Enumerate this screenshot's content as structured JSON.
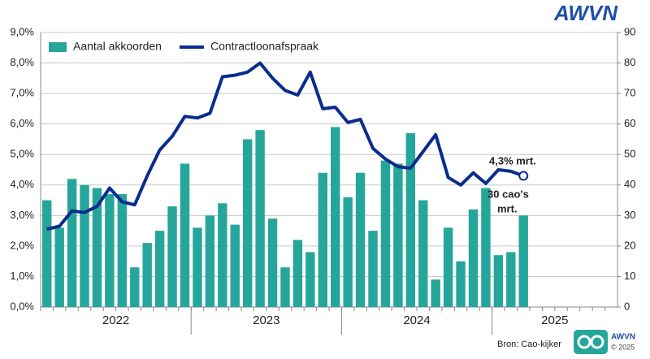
{
  "chart_data": {
    "type": "combo",
    "categories": [
      "2022",
      null,
      null,
      null,
      null,
      null,
      null,
      null,
      null,
      null,
      null,
      null,
      "2023",
      null,
      null,
      null,
      null,
      null,
      null,
      null,
      null,
      null,
      null,
      null,
      "2024",
      null,
      null,
      null,
      null,
      null,
      null,
      null,
      null,
      null,
      null,
      null,
      "2025",
      null,
      null,
      null,
      null,
      null,
      null,
      null,
      null,
      null
    ],
    "series": [
      {
        "name": "Aantal akkoorden",
        "type": "bar",
        "axis": "y2",
        "color": "#26a69a",
        "values": [
          35,
          26,
          42,
          40,
          39,
          37,
          37,
          13,
          21,
          25,
          33,
          47,
          26,
          30,
          34,
          27,
          55,
          58,
          29,
          13,
          22,
          18,
          44,
          59,
          36,
          44,
          25,
          48,
          47,
          57,
          35,
          9,
          26,
          15,
          32,
          39,
          17,
          18,
          30,
          null,
          null,
          null,
          null,
          null,
          null,
          null
        ]
      },
      {
        "name": "Contractloonafspraak",
        "type": "line",
        "color": "#0a2c8c",
        "values": [
          2.55,
          2.65,
          3.15,
          3.1,
          3.3,
          3.9,
          3.45,
          3.35,
          4.3,
          5.15,
          5.6,
          6.25,
          6.2,
          6.35,
          7.55,
          7.6,
          7.7,
          8.0,
          7.5,
          7.1,
          6.95,
          7.7,
          6.5,
          6.55,
          6.05,
          6.15,
          5.2,
          4.85,
          4.6,
          4.55,
          5.1,
          5.65,
          4.25,
          4.0,
          4.4,
          4.05,
          4.5,
          4.45,
          4.3,
          null,
          null,
          null,
          null,
          null,
          null,
          null
        ]
      }
    ],
    "ylim": [
      0,
      9
    ],
    "yticks": [
      {
        "value": 0,
        "label": "0,0%"
      },
      {
        "value": 1,
        "label": "1,0%"
      },
      {
        "value": 2,
        "label": "2,0%"
      },
      {
        "value": 3,
        "label": "3,0%"
      },
      {
        "value": 4,
        "label": "4,0%"
      },
      {
        "value": 5,
        "label": "5,0%"
      },
      {
        "value": 6,
        "label": "6,0%"
      },
      {
        "value": 7,
        "label": "7,0%"
      },
      {
        "value": 8,
        "label": "8,0%"
      },
      {
        "value": 9,
        "label": "9,0%"
      }
    ],
    "y2lim": [
      0,
      90
    ],
    "y2ticks": [
      0,
      10,
      20,
      30,
      40,
      50,
      60,
      70,
      80,
      90
    ],
    "grid": true,
    "legend": "top-left",
    "annotations": [
      {
        "lines": [
          "4,3% mrt."
        ]
      },
      {
        "lines": [
          "30 cao's",
          "mrt."
        ]
      }
    ],
    "source": "Bron: Cao-kijker",
    "logo": "AWVN",
    "footer_brand": "AWVN",
    "footer_copyright": "© 2025"
  }
}
